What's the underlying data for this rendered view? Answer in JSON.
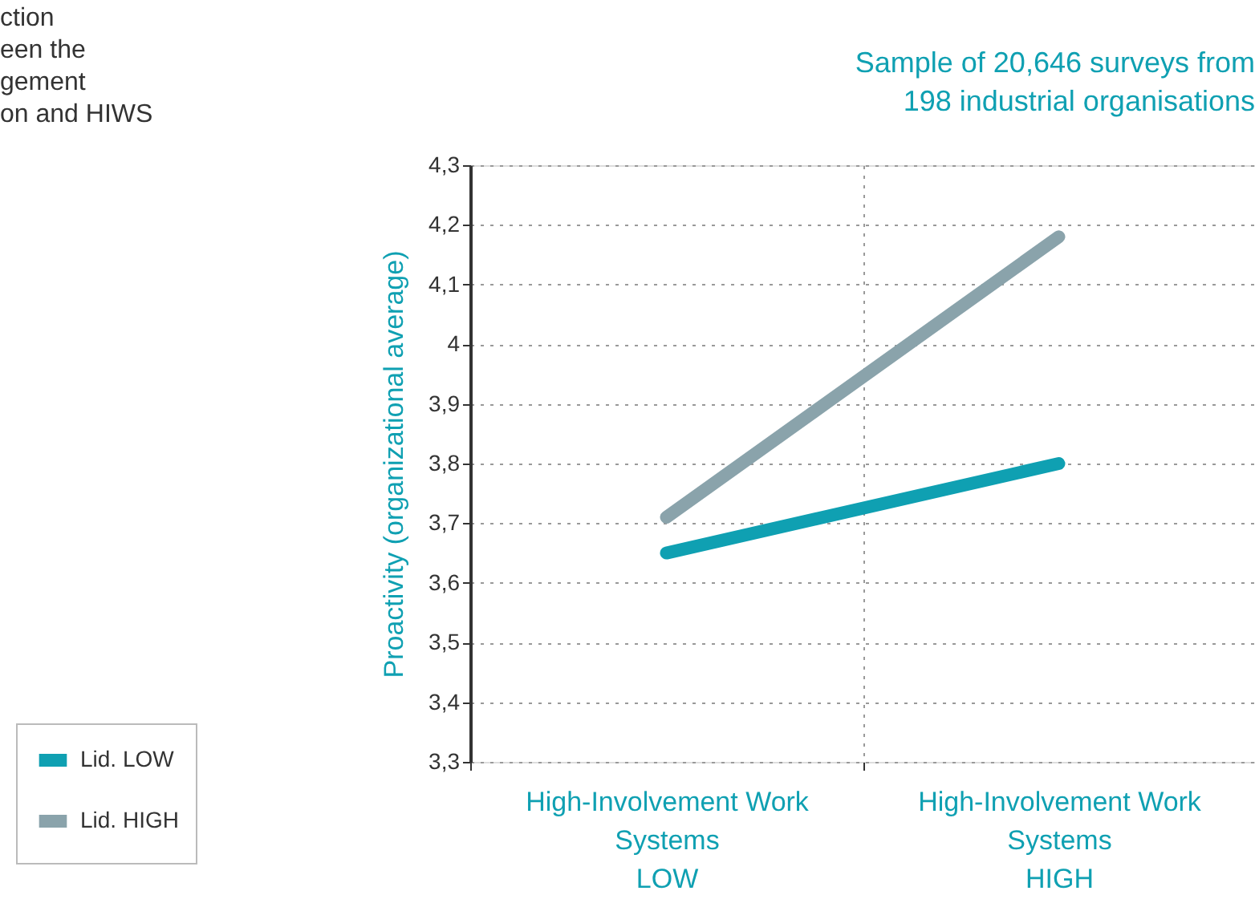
{
  "chart_data": {
    "type": "line",
    "title": "Sample of 20,646 surveys from\n198 industrial organisations",
    "ylabel": "Proactivity (organizational average)",
    "categories": [
      "High-Involvement Work\nSystems\nLOW",
      "High-Involvement Work\nSystems\nHIGH"
    ],
    "series": [
      {
        "name": "Lid. LOW",
        "color": "#0fa0b2",
        "values": [
          3.65,
          3.8
        ]
      },
      {
        "name": "Lid. HIGH",
        "color": "#8aa3ab",
        "values": [
          3.71,
          4.18
        ]
      }
    ],
    "ylim": [
      3.3,
      4.3
    ],
    "yticks": [
      {
        "value": 3.3,
        "label": "3,3"
      },
      {
        "value": 3.4,
        "label": "3,4"
      },
      {
        "value": 3.5,
        "label": "3,5"
      },
      {
        "value": 3.6,
        "label": "3,6"
      },
      {
        "value": 3.7,
        "label": "3,7"
      },
      {
        "value": 3.8,
        "label": "3,8"
      },
      {
        "value": 3.9,
        "label": "3,9"
      },
      4,
      {
        "value": 4.1,
        "label": "4,1"
      },
      {
        "value": 4.2,
        "label": "4,2"
      },
      {
        "value": 4.3,
        "label": "4,3"
      }
    ],
    "grid": true,
    "legend": "left",
    "line_style": "solid",
    "annotations": [
      "ction\neen the\ngement\non and HIWS"
    ]
  }
}
